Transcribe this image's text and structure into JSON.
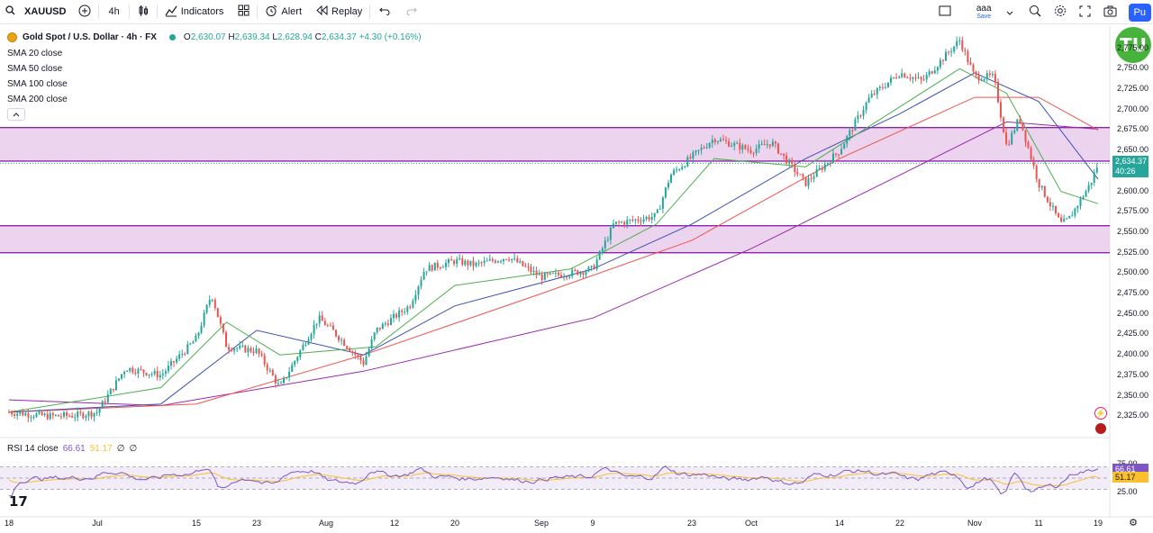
{
  "toolbar": {
    "symbol": "XAUUSD",
    "interval": "4h",
    "indicators_label": "Indicators",
    "alert_label": "Alert",
    "replay_label": "Replay",
    "layout_name": "aaa",
    "layout_save": "Save",
    "publish_label": "Pu"
  },
  "legend": {
    "title": "Gold Spot / U.S. Dollar · 4h · FX",
    "o_label": "O",
    "o": "2,630.07",
    "h_label": "H",
    "h": "2,639.34",
    "l_label": "L",
    "l": "2,628.94",
    "c_label": "C",
    "c": "2,634.37",
    "change": "+4.30 (+0.16%)",
    "sma": [
      "SMA 20 close",
      "SMA 50 close",
      "SMA 100 close",
      "SMA 200 close"
    ]
  },
  "rsi": {
    "label": "RSI 14 close",
    "value": "66.61",
    "ma_value": "51.17",
    "na1": "∅",
    "na2": "∅"
  },
  "price_axis": [
    "2,775.00",
    "2,750.00",
    "2,725.00",
    "2,700.00",
    "2,675.00",
    "2,650.00",
    "2,625.00",
    "2,600.00",
    "2,575.00",
    "2,550.00",
    "2,525.00",
    "2,500.00",
    "2,475.00",
    "2,450.00",
    "2,425.00",
    "2,400.00",
    "2,375.00",
    "2,350.00",
    "2,325.00"
  ],
  "current_price": "2,634.37",
  "countdown": "40:26",
  "rsi_axis": [
    "75.00",
    "25.00"
  ],
  "rsi_tags": {
    "rsi": "66.61",
    "ma": "51.17"
  },
  "time_axis": [
    "18",
    "Jul",
    "15",
    "23",
    "Aug",
    "12",
    "20",
    "Sep",
    "9",
    "23",
    "Oct",
    "14",
    "22",
    "Nov",
    "11",
    "19"
  ],
  "colors": {
    "up": "#26a69a",
    "down": "#ef5350",
    "sma20": "#4caf50",
    "sma50": "#3f51b5",
    "sma100": "#ef5350",
    "sma200": "#9c27b0",
    "zone_fill": "#e9cdeb",
    "zone_line": "#8e24aa",
    "rsi_line": "#7e57c2",
    "rsi_ma": "#fbc02d"
  },
  "chart_data": {
    "type": "candlestick",
    "symbol": "XAUUSD",
    "timeframe": "4h",
    "y_range": [
      2300,
      2790
    ],
    "last_close": 2634.37,
    "zones": [
      {
        "from": 2637,
        "to": 2678
      },
      {
        "from": 2525,
        "to": 2558
      }
    ],
    "series_path": [
      [
        "Jun 18",
        2330
      ],
      [
        "Jun 24",
        2325
      ],
      [
        "Jun 28",
        2326
      ],
      [
        "Jul 1",
        2330
      ],
      [
        "Jul 5",
        2384
      ],
      [
        "Jul 10",
        2375
      ],
      [
        "Jul 15",
        2420
      ],
      [
        "Jul 17",
        2475
      ],
      [
        "Jul 19",
        2410
      ],
      [
        "Jul 23",
        2405
      ],
      [
        "Jul 26",
        2360
      ],
      [
        "Jul 31",
        2445
      ],
      [
        "Aug 2",
        2430
      ],
      [
        "Aug 7",
        2390
      ],
      [
        "Aug 9",
        2430
      ],
      [
        "Aug 14",
        2460
      ],
      [
        "Aug 16",
        2505
      ],
      [
        "Aug 20",
        2515
      ],
      [
        "Aug 23",
        2510
      ],
      [
        "Aug 28",
        2520
      ],
      [
        "Sep 2",
        2495
      ],
      [
        "Sep 6",
        2500
      ],
      [
        "Sep 9",
        2505
      ],
      [
        "Sep 12",
        2560
      ],
      [
        "Sep 18",
        2570
      ],
      [
        "Sep 20",
        2620
      ],
      [
        "Sep 26",
        2665
      ],
      [
        "Oct 1",
        2650
      ],
      [
        "Oct 4",
        2660
      ],
      [
        "Oct 9",
        2610
      ],
      [
        "Oct 14",
        2650
      ],
      [
        "Oct 18",
        2715
      ],
      [
        "Oct 22",
        2745
      ],
      [
        "Oct 25",
        2735
      ],
      [
        "Oct 30",
        2785
      ],
      [
        "Nov 1",
        2740
      ],
      [
        "Nov 4",
        2740
      ],
      [
        "Nov 6",
        2655
      ],
      [
        "Nov 8",
        2690
      ],
      [
        "Nov 11",
        2610
      ],
      [
        "Nov 14",
        2560
      ],
      [
        "Nov 15",
        2565
      ],
      [
        "Nov 18",
        2610
      ],
      [
        "Nov 19",
        2634
      ]
    ],
    "sma20_path": [
      [
        "Jun 18",
        2330
      ],
      [
        "Jul 10",
        2360
      ],
      [
        "Jul 19",
        2440
      ],
      [
        "Jul 26",
        2400
      ],
      [
        "Aug 9",
        2410
      ],
      [
        "Aug 20",
        2485
      ],
      [
        "Sep 6",
        2505
      ],
      [
        "Sep 18",
        2560
      ],
      [
        "Sep 26",
        2640
      ],
      [
        "Oct 9",
        2630
      ],
      [
        "Oct 18",
        2680
      ],
      [
        "Oct 30",
        2750
      ],
      [
        "Nov 6",
        2720
      ],
      [
        "Nov 14",
        2600
      ],
      [
        "Nov 19",
        2585
      ]
    ],
    "sma50_path": [
      [
        "Jun 18",
        2330
      ],
      [
        "Jul 10",
        2340
      ],
      [
        "Jul 23",
        2430
      ],
      [
        "Aug 7",
        2400
      ],
      [
        "Aug 20",
        2460
      ],
      [
        "Sep 9",
        2505
      ],
      [
        "Sep 23",
        2560
      ],
      [
        "Oct 9",
        2640
      ],
      [
        "Oct 22",
        2695
      ],
      [
        "Nov 1",
        2745
      ],
      [
        "Nov 11",
        2710
      ],
      [
        "Nov 19",
        2615
      ]
    ],
    "sma100_path": [
      [
        "Jun 18",
        2330
      ],
      [
        "Jul 15",
        2340
      ],
      [
        "Aug 7",
        2400
      ],
      [
        "Sep 2",
        2475
      ],
      [
        "Sep 23",
        2540
      ],
      [
        "Oct 14",
        2640
      ],
      [
        "Nov 1",
        2715
      ],
      [
        "Nov 11",
        2715
      ],
      [
        "Nov 19",
        2675
      ]
    ],
    "sma200_path": [
      [
        "Jun 18",
        2345
      ],
      [
        "Jul 10",
        2338
      ],
      [
        "Aug 7",
        2380
      ],
      [
        "Sep 9",
        2445
      ],
      [
        "Oct 1",
        2530
      ],
      [
        "Oct 22",
        2620
      ],
      [
        "Nov 6",
        2685
      ],
      [
        "Nov 19",
        2676
      ]
    ],
    "rsi": {
      "range": [
        0,
        100
      ],
      "upper": 70,
      "middle": 50,
      "lower": 30,
      "last": 66.61,
      "ma_last": 51.17
    }
  }
}
